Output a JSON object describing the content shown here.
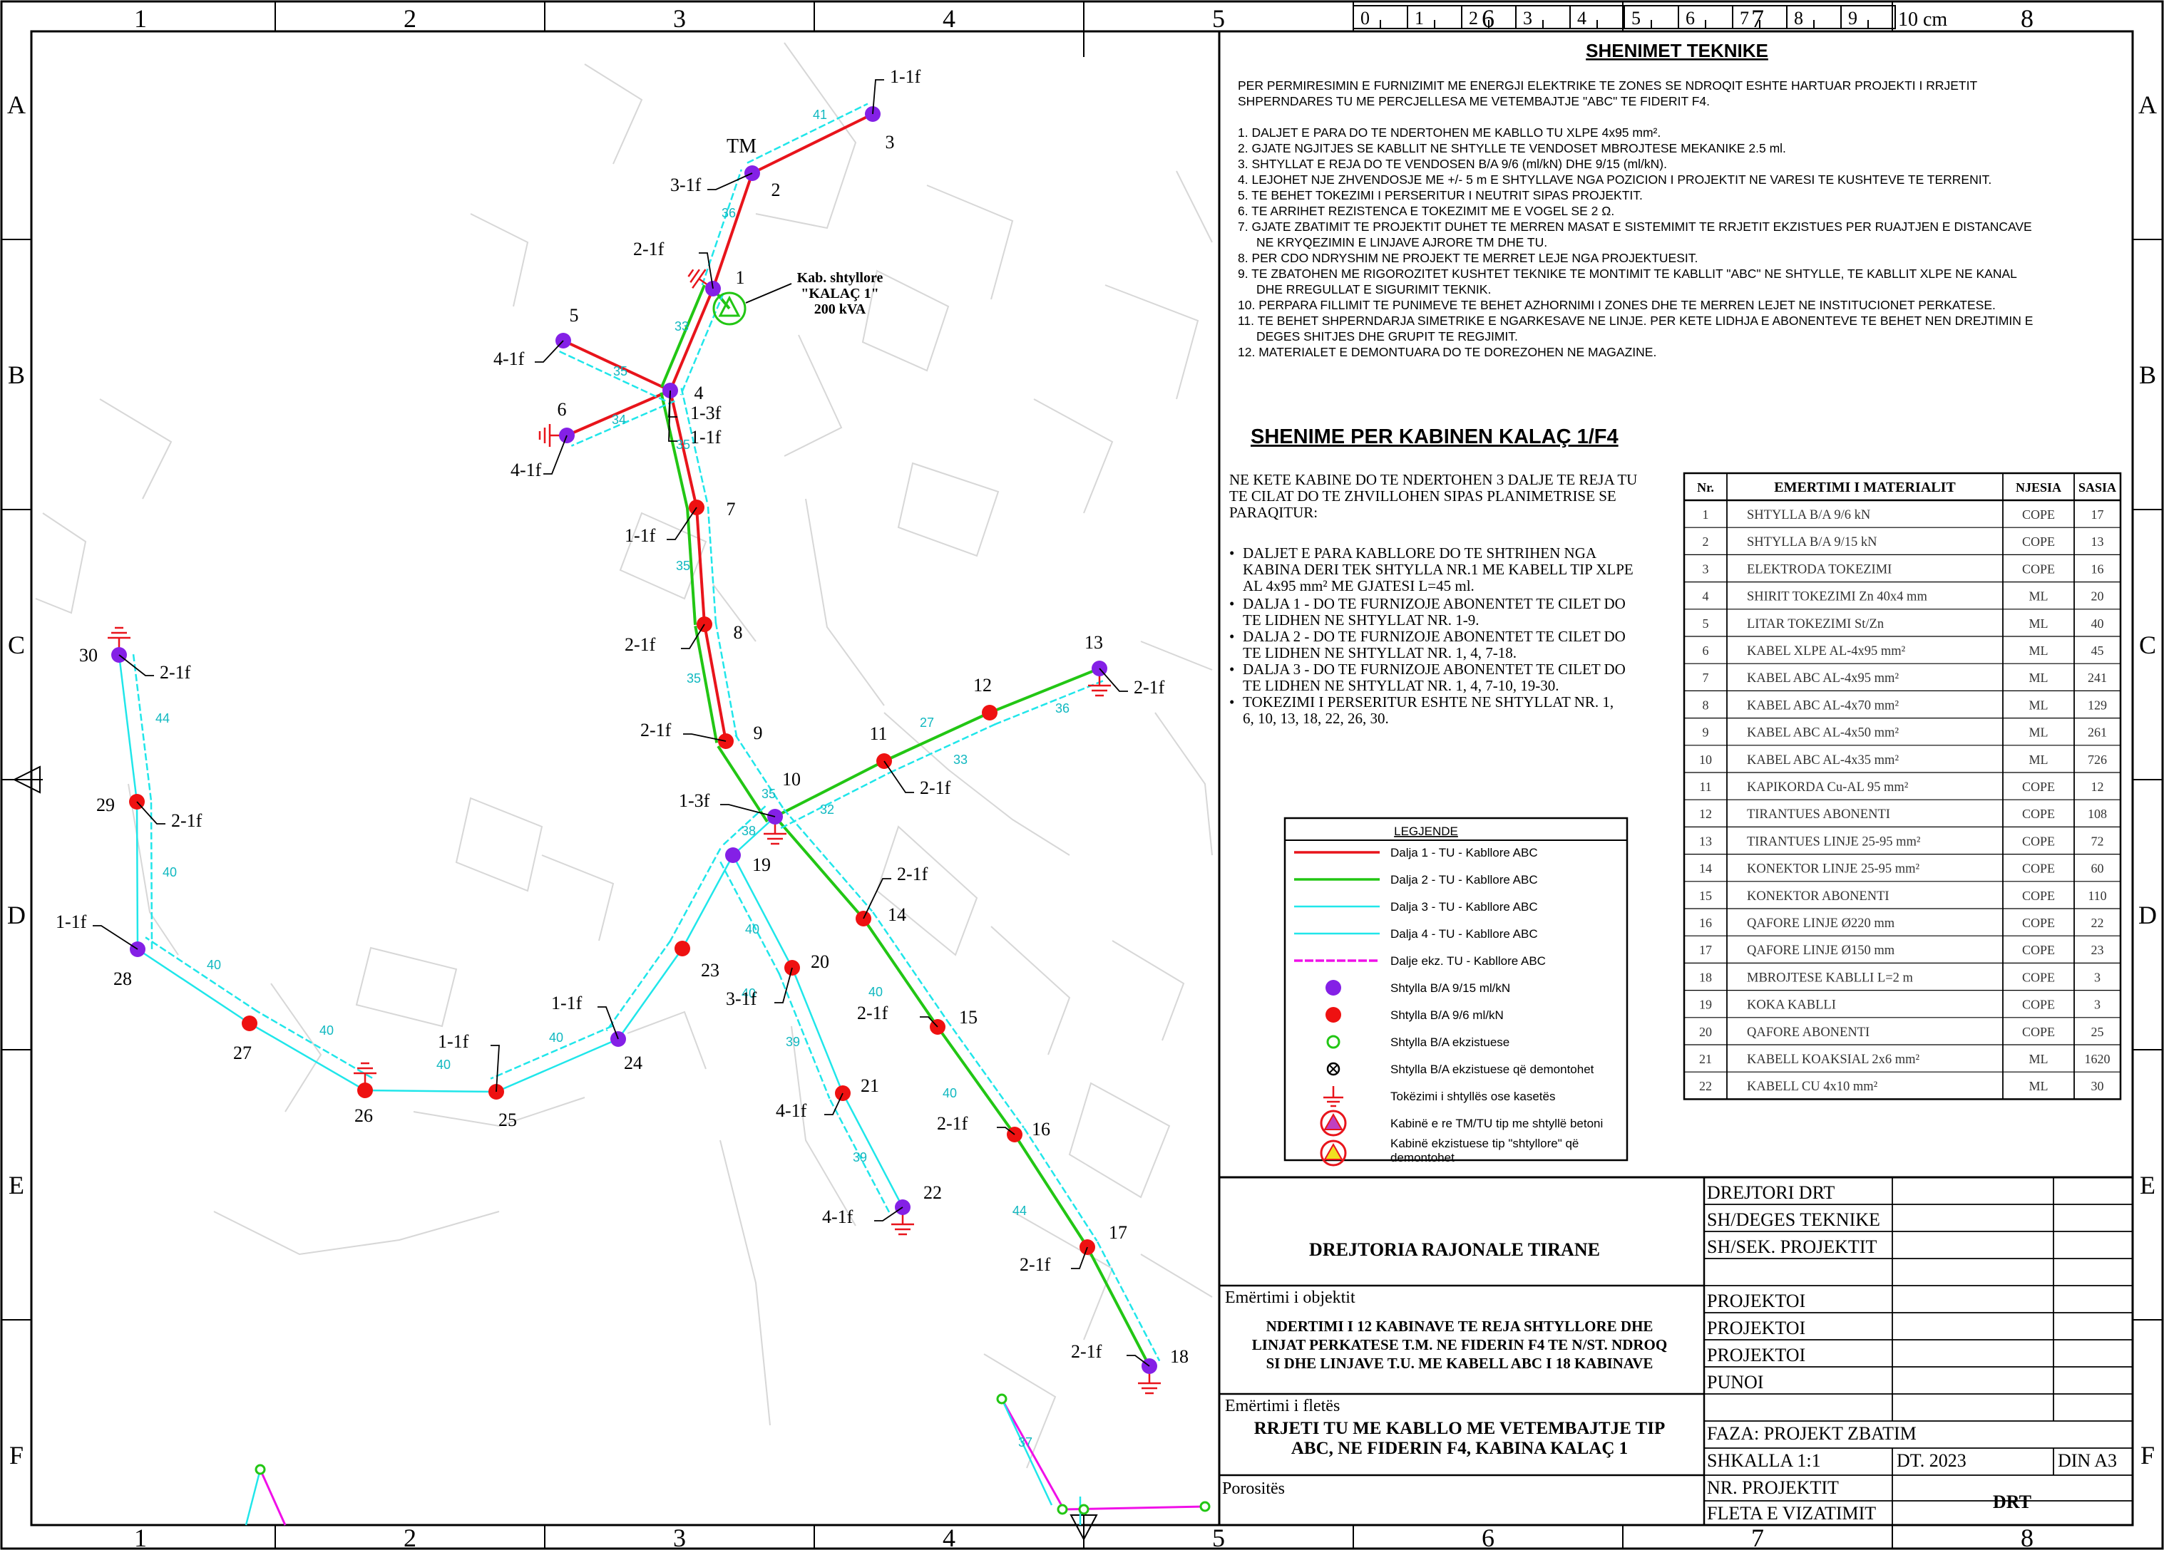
{
  "colors": {
    "dalja1": "#e8141b",
    "dalja2": "#22c614",
    "dalja3": "#20e6ea",
    "dalja4": "#00e5ee",
    "existing": "#f010e8",
    "pole_9_15": "#8420e6",
    "pole_9_6": "#ee1111",
    "pole_existing": "#22c614",
    "grounding": "#e8141b",
    "cabin": "#22c614"
  },
  "frame": {
    "col_labels": [
      "1",
      "2",
      "3",
      "4",
      "5",
      "6",
      "7",
      "8"
    ],
    "row_labels": [
      "A",
      "B",
      "C",
      "D",
      "E",
      "F"
    ]
  },
  "scale_ruler": {
    "ticks": [
      "0",
      "1",
      "2",
      "3",
      "4",
      "5",
      "6",
      "7",
      "8",
      "9"
    ],
    "unit": "10 cm"
  },
  "map": {
    "pole_numbers": [
      "1",
      "2",
      "3",
      "4",
      "5",
      "6",
      "7",
      "8",
      "9",
      "10",
      "11",
      "12",
      "13",
      "14",
      "15",
      "16",
      "17",
      "18",
      "19",
      "20",
      "21",
      "22",
      "23",
      "24",
      "25",
      "26",
      "27",
      "28",
      "29",
      "30"
    ],
    "pole_codes": [
      "1-1f",
      "3-1f",
      "2-1f",
      "4-1f",
      "4-1f",
      "1-3f",
      "1-1f",
      "1-1f",
      "2-1f",
      "2-1f",
      "1-3f",
      "2-1f",
      "2-1f",
      "2-1f",
      "2-1f",
      "2-1f",
      "2-1f",
      "2-1f",
      "1-1f",
      "3-1f",
      "4-1f",
      "4-1f",
      "1-1f",
      "1-1f",
      "1-1f",
      "2-1f",
      "2-1f"
    ],
    "tm_label": "TM",
    "cabin_label": "Kab. shtyllore \"KALAÇ 1\" 200 kVA",
    "cabin_lines": [
      "Kab. shtyllore",
      "\"KALAÇ 1\"",
      "200 kVA"
    ],
    "span_lengths": [
      "41",
      "36",
      "33",
      "35",
      "34",
      "35",
      "35",
      "35",
      "35",
      "27",
      "36",
      "38",
      "32",
      "33",
      "40",
      "40",
      "40",
      "40",
      "44",
      "44",
      "40",
      "40",
      "40",
      "40",
      "40",
      "39",
      "39",
      "37"
    ]
  },
  "technical_notes": {
    "title": "SHENIMET TEKNIKE",
    "intro": "PER PERMIRESIMIN E FURNIZIMIT ME ENERGJI ELEKTRIKE TE ZONES SE NDROQIT ESHTE HARTUAR PROJEKTI I RRJETIT SHPERNDARES TU ME PERCJELLESA ME VETEMBAJTJE \"ABC\" TE FIDERIT F4.",
    "items": [
      "1.  DALJET E PARA DO TE NDERTOHEN ME KABLLO TU XLPE 4x95 mm².",
      "2.  GJATE NGJITJES SE KABLLIT NE SHTYLLE TE VENDOSET MBROJTESE MEKANIKE 2.5 ml.",
      "3.  SHTYLLAT E REJA DO TE VENDOSEN B/A 9/6 (ml/kN) DHE 9/15 (ml/kN).",
      "4.  LEJOHET NJE ZHVENDOSJE ME +/- 5 m E SHTYLLAVE NGA POZICION I PROJEKTIT NE VARESI TE KUSHTEVE TE TERRENIT.",
      "5.  TE BEHET TOKEZIMI I PERSERITUR I NEUTRIT SIPAS PROJEKTIT.",
      "6.  TE ARRIHET REZISTENCA E TOKEZIMIT ME E VOGEL SE 2 Ω.",
      "7.  GJATE ZBATIMIT TE PROJEKTIT DUHET TE MERREN MASAT E SISTEMIMIT TE RRJETIT EKZISTUES PER RUAJTJEN E DISTANCAVE NE KRYQEZIMIN E LINJAVE AJRORE TM DHE TU.",
      "8.  PER CDO NDRYSHIM NE PROJEKT TE MERRET LEJE NGA PROJEKTUESIT.",
      "9.  TE ZBATOHEN ME RIGOROZITET KUSHTET TEKNIKE TE MONTIMIT TE KABLLIT \"ABC\" NE SHTYLLE, TE KABLLIT XLPE NE KANAL DHE RREGULLAT E SIGURIMIT TEKNIK.",
      "10. PERPARA FILLIMIT TE PUNIMEVE TE BEHET AZHORNIMI I ZONES DHE TE MERREN LEJET NE INSTITUCIONET PERKATESE.",
      "11. TE BEHET SHPERNDARJA SIMETRIKE E NGARKESAVE NE LINJE. PER KETE LIDHJA E ABONENTEVE TE BEHET NEN DREJTIMIN E DEGES SHITJES DHE GRUPIT TE REGJIMIT.",
      "12. MATERIALET E DEMONTUARA DO TE DOREZOHEN NE MAGAZINE."
    ]
  },
  "cabin_notes": {
    "title": "SHENIME PER KABINEN KALAÇ 1/F4",
    "intro": "NE KETE KABINE DO TE NDERTOHEN 3 DALJE TE REJA TU TE CILAT DO TE ZHVILLOHEN SIPAS PLANIMETRISE SE PARAQITUR:",
    "bullets": [
      "DALJET E PARA KABLLORE DO TE SHTRIHEN NGA KABINA DERI TEK SHTYLLA NR.1 ME KABELL TIP XLPE AL 4x95 mm² ME GJATESI L=45 ml.",
      "DALJA 1 - DO TE FURNIZOJE ABONENTET TE CILET DO TE LIDHEN NE SHTYLLAT NR. 1-9.",
      "DALJA 2 - DO TE FURNIZOJE ABONENTET TE CILET DO TE LIDHEN NE SHTYLLAT NR. 1, 4, 7-18.",
      "DALJA 3 - DO TE FURNIZOJE ABONENTET TE CILET DO TE LIDHEN NE SHTYLLAT NR. 1, 4, 7-10, 19-30.",
      "TOKEZIMI I PERSERITUR ESHTE NE SHTYLLAT NR. 1, 6, 10, 13, 18, 22, 26, 30."
    ]
  },
  "materials_table": {
    "headers": [
      "Nr.",
      "EMERTIMI I MATERIALIT",
      "NJESIA",
      "SASIA"
    ],
    "rows": [
      [
        "1",
        "SHTYLLA B/A 9/6 kN",
        "COPE",
        "17"
      ],
      [
        "2",
        "SHTYLLA B/A 9/15 kN",
        "COPE",
        "13"
      ],
      [
        "3",
        "ELEKTRODA TOKEZIMI",
        "COPE",
        "16"
      ],
      [
        "4",
        "SHIRIT TOKEZIMI Zn 40x4 mm",
        "ML",
        "20"
      ],
      [
        "5",
        "LITAR TOKEZIMI St/Zn",
        "ML",
        "40"
      ],
      [
        "6",
        "KABEL XLPE AL-4x95 mm²",
        "ML",
        "45"
      ],
      [
        "7",
        "KABEL ABC AL-4x95 mm²",
        "ML",
        "241"
      ],
      [
        "8",
        "KABEL ABC AL-4x70 mm²",
        "ML",
        "129"
      ],
      [
        "9",
        "KABEL ABC AL-4x50 mm²",
        "ML",
        "261"
      ],
      [
        "10",
        "KABEL ABC AL-4x35 mm²",
        "ML",
        "726"
      ],
      [
        "11",
        "KAPIKORDA Cu-AL 95 mm²",
        "COPE",
        "12"
      ],
      [
        "12",
        "TIRANTUES ABONENTI",
        "COPE",
        "108"
      ],
      [
        "13",
        "TIRANTUES LINJE 25-95 mm²",
        "COPE",
        "72"
      ],
      [
        "14",
        "KONEKTOR LINJE 25-95 mm²",
        "COPE",
        "60"
      ],
      [
        "15",
        "KONEKTOR ABONENTI",
        "COPE",
        "110"
      ],
      [
        "16",
        "QAFORE LINJE Ø220 mm",
        "COPE",
        "22"
      ],
      [
        "17",
        "QAFORE LINJE Ø150 mm",
        "COPE",
        "23"
      ],
      [
        "18",
        "MBROJTESE KABLLI L=2 m",
        "COPE",
        "3"
      ],
      [
        "19",
        "KOKA KABLLI",
        "COPE",
        "3"
      ],
      [
        "20",
        "QAFORE ABONENTI",
        "COPE",
        "25"
      ],
      [
        "21",
        "KABELL KOAKSIAL 2x6 mm²",
        "ML",
        "1620"
      ],
      [
        "22",
        "KABELL CU 4x10 mm²",
        "ML",
        "30"
      ]
    ]
  },
  "legend": {
    "title": "LEGJENDE",
    "items": [
      {
        "label": "Dalja 1 - TU - Kabllore ABC",
        "icon": "red-line"
      },
      {
        "label": "Dalja 2 - TU - Kabllore ABC",
        "icon": "green-line"
      },
      {
        "label": "Dalja 3 - TU - Kabllore ABC",
        "icon": "cyan-line"
      },
      {
        "label": "Dalja 4 - TU - Kabllore ABC",
        "icon": "cyan-line"
      },
      {
        "label": "Dalje ekz. TU - Kabllore ABC",
        "icon": "magenta-line"
      },
      {
        "label": "Shtylla B/A 9/15 ml/kN",
        "icon": "purple-dot"
      },
      {
        "label": "Shtylla B/A 9/6 ml/kN",
        "icon": "red-dot"
      },
      {
        "label": "Shtylla B/A ekzistuese",
        "icon": "green-ring"
      },
      {
        "label": "Shtylla B/A ekzistuese që demontohet",
        "icon": "crossed-ring"
      },
      {
        "label": "Tokëzimi i shtyllës ose kasetës",
        "icon": "ground-symbol"
      },
      {
        "label": "Kabinë e re TM/TU tip me shtyllë betoni",
        "icon": "new-cabin-symbol"
      },
      {
        "label": "Kabinë ekzistuese tip \"shtyllore\" që demontohet",
        "icon": "old-cabin-symbol"
      }
    ]
  },
  "title_block": {
    "organization": "DREJTORIA RAJONALE TIRANE",
    "object_label": "Emërtimi i objektit",
    "object_lines": [
      "NDERTIMI I 12 KABINAVE TE REJA SHTYLLORE DHE",
      "LINJAT PERKATESE T.M. NE FIDERIN F4 TE N/ST. NDROQ",
      "SI DHE LINJAVE T.U. ME KABELL ABC I 18 KABINAVE"
    ],
    "sheet_label": "Emërtimi i fletës",
    "sheet_lines": [
      "RRJETI TU ME KABLLO ME VETEMBAJTJE TIP",
      "ABC, NE FIDERIN F4, KABINA KALAÇ 1"
    ],
    "client_label": "Porositës",
    "roles": [
      "DREJTORI DRT",
      "SH/DEGES TEKNIKE",
      "SH/SEK. PROJEKTIT",
      "",
      "PROJEKTOI",
      "PROJEKTOI",
      "PROJEKTOI",
      "PUNOI",
      ""
    ],
    "phase": "FAZA: PROJEKT ZBATIM",
    "scale": "SHKALLA 1:1",
    "date": "DT. 2023",
    "format": "DIN A3",
    "project_no_label": "NR. PROJEKTIT",
    "sheet_no_label": "FLETA E VIZATIMIT",
    "company": "DRT"
  }
}
